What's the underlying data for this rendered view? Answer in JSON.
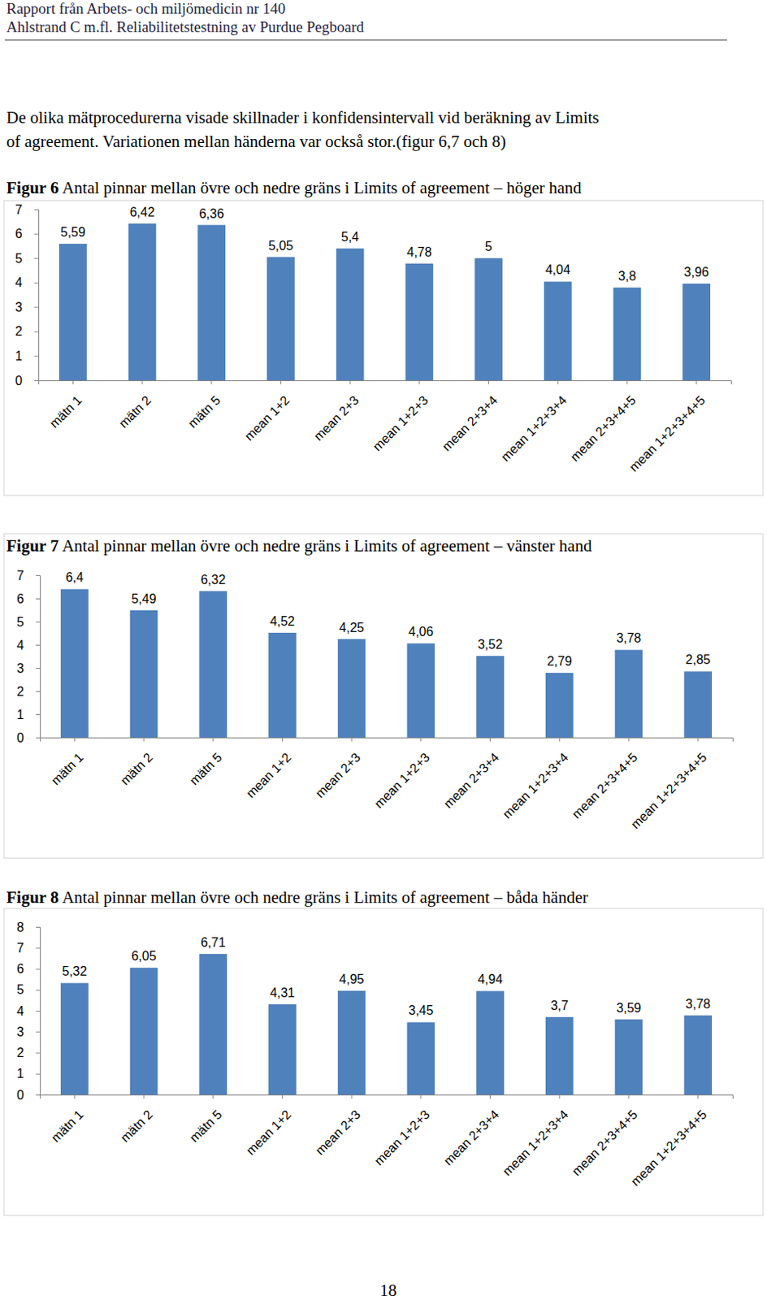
{
  "header": [
    "Rapport från Arbets- och miljömedicin nr 140",
    "Ahlstrand C m.fl. Reliabilitetstestning av Purdue Pegboard"
  ],
  "paragraph": [
    "De olika mätprocedurerna visade skillnader i konfidensintervall vid beräkning av Limits",
    "of agreement. Variationen mellan händerna var också stor.(figur 6,7 och 8)"
  ],
  "page_number": "18",
  "chart_data": [
    {
      "type": "bar",
      "title": "Figur 6 Antal pinnar mellan övre och nedre gräns i Limits of agreement – höger hand",
      "categories": [
        "mätn 1",
        "mätn 2",
        "mätn 5",
        "mean 1+2",
        "mean 2+3",
        "mean 1+2+3",
        "mean 2+3+4",
        "mean 1+2+3+4",
        "mean 2+3+4+5",
        "mean 1+2+3+4+5"
      ],
      "values": [
        5.59,
        6.42,
        6.36,
        5.05,
        5.4,
        4.78,
        5,
        4.04,
        3.8,
        3.96
      ],
      "value_labels": [
        "5,59",
        "6,42",
        "6,36",
        "5,05",
        "5,4",
        "4,78",
        "5",
        "4,04",
        "3,8",
        "3,96"
      ],
      "color": "#4f81bd",
      "ylim": [
        0,
        7
      ],
      "yticks": [
        0,
        1,
        2,
        3,
        4,
        5,
        6,
        7
      ],
      "grid": false,
      "data_labels": true
    },
    {
      "type": "bar",
      "title": "Figur 7 Antal pinnar mellan övre och nedre gräns i Limits of agreement – vänster hand",
      "categories": [
        "mätn 1",
        "mätn 2",
        "mätn 5",
        "mean 1+2",
        "mean 2+3",
        "mean 1+2+3",
        "mean 2+3+4",
        "mean 1+2+3+4",
        "mean 2+3+4+5",
        "mean 1+2+3+4+5"
      ],
      "values": [
        6.4,
        5.49,
        6.32,
        4.52,
        4.25,
        4.06,
        3.52,
        2.79,
        3.78,
        2.85
      ],
      "value_labels": [
        "6,4",
        "5,49",
        "6,32",
        "4,52",
        "4,25",
        "4,06",
        "3,52",
        "2,79",
        "3,78",
        "2,85"
      ],
      "color": "#4f81bd",
      "ylim": [
        0,
        7
      ],
      "yticks": [
        0,
        1,
        2,
        3,
        4,
        5,
        6,
        7
      ],
      "grid": false,
      "data_labels": true
    },
    {
      "type": "bar",
      "title": "Figur 8 Antal pinnar mellan övre och nedre gräns i Limits of agreement – båda händer",
      "categories": [
        "mätn 1",
        "mätn 2",
        "mätn 5",
        "mean 1+2",
        "mean 2+3",
        "mean 1+2+3",
        "mean 2+3+4",
        "mean 1+2+3+4",
        "mean 2+3+4+5",
        "mean 1+2+3+4+5"
      ],
      "values": [
        5.32,
        6.05,
        6.71,
        4.31,
        4.95,
        3.45,
        4.94,
        3.7,
        3.59,
        3.78
      ],
      "value_labels": [
        "5,32",
        "6,05",
        "6,71",
        "4,31",
        "4,95",
        "3,45",
        "4,94",
        "3,7",
        "3,59",
        "3,78"
      ],
      "color": "#4f81bd",
      "ylim": [
        0,
        8
      ],
      "yticks": [
        0,
        1,
        2,
        3,
        4,
        5,
        6,
        7,
        8
      ],
      "grid": false,
      "data_labels": true
    }
  ]
}
